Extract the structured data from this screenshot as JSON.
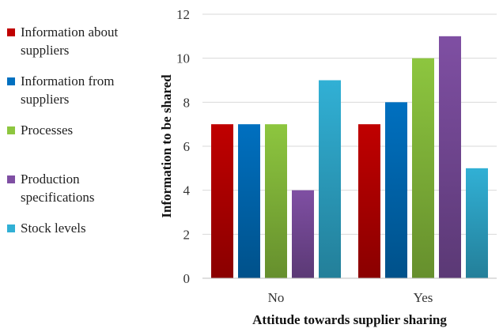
{
  "chart_data": {
    "type": "bar",
    "title": "",
    "xlabel": "Attitude towards supplier sharing",
    "ylabel": "Information to be shared",
    "categories": [
      "No",
      "Yes"
    ],
    "ylim": [
      0,
      12
    ],
    "yticks": [
      0,
      2,
      4,
      6,
      8,
      10,
      12
    ],
    "grid": true,
    "legend_position": "left",
    "series": [
      {
        "name": "Information about suppliers",
        "legend_lines": [
          "Information about",
          "suppliers"
        ],
        "color": "#c00000",
        "values": [
          7,
          7
        ]
      },
      {
        "name": "Information from suppliers",
        "legend_lines": [
          "Information from",
          "suppliers"
        ],
        "color": "#0070c0",
        "values": [
          7,
          8
        ]
      },
      {
        "name": "Processes",
        "legend_lines": [
          "Processes"
        ],
        "color": "#8dc63f",
        "values": [
          7,
          10
        ]
      },
      {
        "name": "Production specifications",
        "legend_lines": [
          "Production",
          "specifications"
        ],
        "color": "#7f4fa3",
        "values": [
          4,
          11
        ]
      },
      {
        "name": "Stock levels",
        "legend_lines": [
          "Stock levels"
        ],
        "color": "#31b0d5",
        "values": [
          9,
          5
        ]
      }
    ]
  }
}
